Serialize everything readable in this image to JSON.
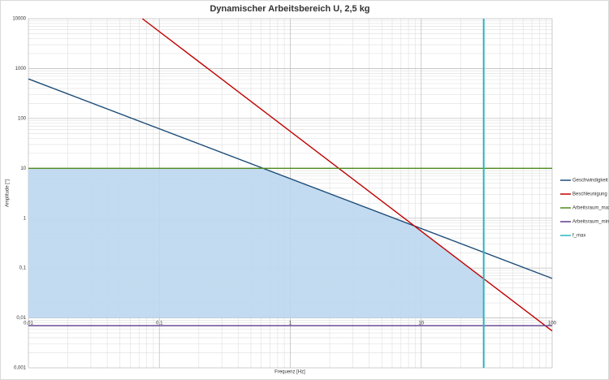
{
  "chart_data": {
    "type": "line",
    "title": "Dynamischer Arbeitsbereich U, 2,5 kg",
    "xlabel": "Frequenz [Hz]",
    "ylabel": "Amplitude [°]",
    "log_x": true,
    "log_y": true,
    "grid": true,
    "legend": "right",
    "fill_color": "#bdd7ee",
    "xlim": [
      0.01,
      100
    ],
    "ylim": [
      0.001,
      10000
    ],
    "xticks": [
      {
        "value": 0.01,
        "label": "0,01"
      },
      {
        "value": 0.1,
        "label": "0,1"
      },
      1,
      10,
      100
    ],
    "yticks": [
      {
        "value": 0.001,
        "label": "0,001"
      },
      {
        "value": 0.01,
        "label": "0,01"
      },
      {
        "value": 0.1,
        "label": "0,1"
      },
      1,
      10,
      100,
      1000,
      10000
    ],
    "series": [
      {
        "name": "Geschwindigkeit",
        "color": "#1f4e79",
        "x": [
          0.01,
          100
        ],
        "values": [
          620,
          0.062
        ]
      },
      {
        "name": "Beschleunigung",
        "color": "#c00000",
        "x": [
          0.0742,
          100
        ],
        "values": [
          10000,
          0.0055
        ]
      },
      {
        "name": "Arbeitsraum_max",
        "color": "#4e8a1e",
        "x": [
          0.01,
          100
        ],
        "values": [
          10,
          10
        ]
      },
      {
        "name": "Arbeitsraum_min",
        "color": "#5b3a8c",
        "x": [
          0.01,
          100
        ],
        "values": [
          0.007,
          0.007
        ]
      },
      {
        "name": "f_max",
        "color": "#2bb5c0",
        "x": [
          30,
          30
        ],
        "values": [
          0.001,
          10000
        ]
      }
    ]
  }
}
